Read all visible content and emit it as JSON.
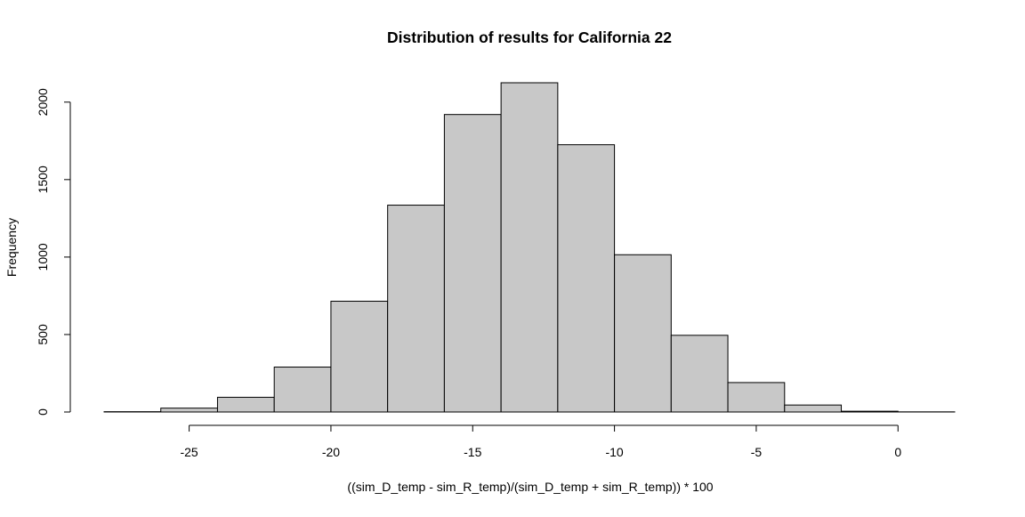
{
  "chart_data": {
    "type": "bar",
    "title": "Distribution of results for California 22",
    "xlabel": "((sim_D_temp - sim_R_temp)/(sim_D_temp + sim_R_temp)) * 100",
    "ylabel": "Frequency",
    "bin_edges": [
      -28,
      -26,
      -24,
      -22,
      -20,
      -18,
      -16,
      -14,
      -12,
      -10,
      -8,
      -6,
      -4,
      -2,
      0,
      2
    ],
    "values": [
      2,
      25,
      95,
      290,
      715,
      1335,
      1920,
      2125,
      1725,
      1015,
      495,
      190,
      45,
      5,
      1
    ],
    "xlim": [
      -28,
      2
    ],
    "ylim": [
      0,
      2125
    ],
    "x_ticks": [
      -25,
      -20,
      -15,
      -10,
      -5,
      0
    ],
    "y_ticks": [
      0,
      500,
      1000,
      1500,
      2000
    ],
    "bar_fill": "#c8c8c8",
    "bar_stroke": "#000000",
    "grid": false,
    "legend": "none"
  }
}
